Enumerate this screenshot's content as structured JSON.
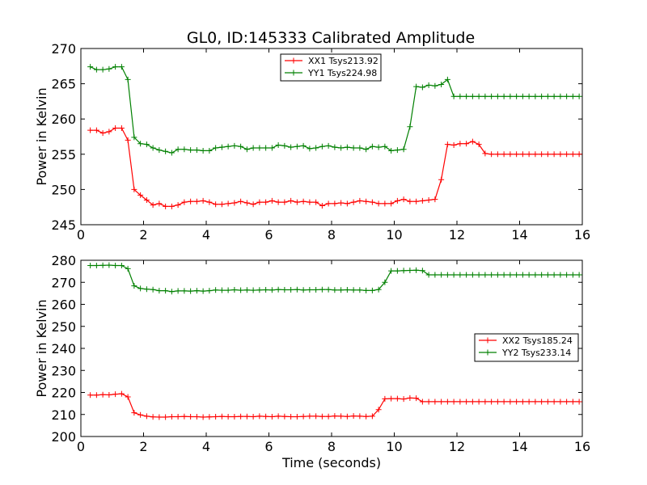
{
  "chart_data": [
    {
      "type": "line",
      "title": "GL0, ID:145333 Calibrated Amplitude",
      "xlabel": "",
      "ylabel": "Power in Kelvin",
      "xlim": [
        0,
        16
      ],
      "ylim": [
        245,
        270
      ],
      "x_ticks": [
        "0",
        "2",
        "4",
        "6",
        "8",
        "10",
        "12",
        "14",
        "16"
      ],
      "y_ticks": [
        "245",
        "250",
        "255",
        "260",
        "265",
        "270"
      ],
      "legend_position": "top-center",
      "x": [
        0.3,
        0.5,
        0.7,
        0.9,
        1.1,
        1.3,
        1.5,
        1.7,
        1.9,
        2.1,
        2.3,
        2.5,
        2.7,
        2.9,
        3.1,
        3.3,
        3.5,
        3.7,
        3.9,
        4.1,
        4.3,
        4.5,
        4.7,
        4.9,
        5.1,
        5.3,
        5.5,
        5.7,
        5.9,
        6.1,
        6.3,
        6.5,
        6.7,
        6.9,
        7.1,
        7.3,
        7.5,
        7.7,
        7.9,
        8.1,
        8.3,
        8.5,
        8.7,
        8.9,
        9.1,
        9.3,
        9.5,
        9.7,
        9.9,
        10.1,
        10.3,
        10.5,
        10.7,
        10.9,
        11.1,
        11.3,
        11.5,
        11.7,
        11.9,
        12.1,
        12.3,
        12.5,
        12.7,
        12.9,
        13.1,
        13.3,
        13.5,
        13.7,
        13.9,
        14.1,
        14.3,
        14.5,
        14.7,
        14.9,
        15.1,
        15.3,
        15.5,
        15.7,
        15.9
      ],
      "series": [
        {
          "name": "XX1 Tsys213.92",
          "color": "#ff0000",
          "values": [
            258.4,
            258.4,
            258.0,
            258.2,
            258.7,
            258.7,
            257.0,
            250.0,
            249.2,
            248.5,
            247.8,
            248.0,
            247.6,
            247.6,
            247.8,
            248.2,
            248.3,
            248.3,
            248.4,
            248.2,
            247.9,
            247.9,
            248.0,
            248.1,
            248.3,
            248.1,
            247.9,
            248.2,
            248.2,
            248.4,
            248.2,
            248.2,
            248.4,
            248.2,
            248.3,
            248.2,
            248.2,
            247.7,
            248.0,
            248.0,
            248.1,
            248.0,
            248.2,
            248.4,
            248.3,
            248.2,
            248.0,
            248.0,
            248.0,
            248.4,
            248.6,
            248.3,
            248.3,
            248.4,
            248.5,
            248.6,
            251.4,
            256.4,
            256.3,
            256.5,
            256.5,
            256.8,
            256.4,
            255.1,
            255.0,
            255.0,
            255.0,
            255.0,
            255.0,
            255.0,
            255.0,
            255.0,
            255.0,
            255.0,
            255.0,
            255.0,
            255.0,
            255.0,
            255.0
          ]
        },
        {
          "name": "YY1 Tsys224.98",
          "color": "#008000",
          "values": [
            267.4,
            267.0,
            267.0,
            267.1,
            267.4,
            267.4,
            265.6,
            257.4,
            256.5,
            256.4,
            255.9,
            255.6,
            255.4,
            255.2,
            255.7,
            255.7,
            255.6,
            255.6,
            255.5,
            255.5,
            255.9,
            256.0,
            256.1,
            256.2,
            256.1,
            255.7,
            255.9,
            255.9,
            255.9,
            255.9,
            256.3,
            256.2,
            256.0,
            256.1,
            256.2,
            255.8,
            255.9,
            256.1,
            256.2,
            256.0,
            255.9,
            256.0,
            255.9,
            255.9,
            255.7,
            256.1,
            256.0,
            256.1,
            255.5,
            255.6,
            255.7,
            258.9,
            264.6,
            264.5,
            264.8,
            264.7,
            264.9,
            265.6,
            263.2,
            263.2,
            263.2,
            263.2,
            263.2,
            263.2,
            263.2,
            263.2,
            263.2,
            263.2,
            263.2,
            263.2,
            263.2,
            263.2,
            263.2,
            263.2,
            263.2,
            263.2,
            263.2,
            263.2,
            263.2
          ]
        }
      ]
    },
    {
      "type": "line",
      "title": "",
      "xlabel": "Time (seconds)",
      "ylabel": "Power in Kelvin",
      "xlim": [
        0,
        16
      ],
      "ylim": [
        200,
        280
      ],
      "x_ticks": [
        "0",
        "2",
        "4",
        "6",
        "8",
        "10",
        "12",
        "14",
        "16"
      ],
      "y_ticks": [
        "200",
        "210",
        "220",
        "230",
        "240",
        "250",
        "260",
        "270",
        "280"
      ],
      "legend_position": "center-right",
      "x": [
        0.3,
        0.5,
        0.7,
        0.9,
        1.1,
        1.3,
        1.5,
        1.7,
        1.9,
        2.1,
        2.3,
        2.5,
        2.7,
        2.9,
        3.1,
        3.3,
        3.5,
        3.7,
        3.9,
        4.1,
        4.3,
        4.5,
        4.7,
        4.9,
        5.1,
        5.3,
        5.5,
        5.7,
        5.9,
        6.1,
        6.3,
        6.5,
        6.7,
        6.9,
        7.1,
        7.3,
        7.5,
        7.7,
        7.9,
        8.1,
        8.3,
        8.5,
        8.7,
        8.9,
        9.1,
        9.3,
        9.5,
        9.7,
        9.9,
        10.1,
        10.3,
        10.5,
        10.7,
        10.9,
        11.1,
        11.3,
        11.5,
        11.7,
        11.9,
        12.1,
        12.3,
        12.5,
        12.7,
        12.9,
        13.1,
        13.3,
        13.5,
        13.7,
        13.9,
        14.1,
        14.3,
        14.5,
        14.7,
        14.9,
        15.1,
        15.3,
        15.5,
        15.7,
        15.9
      ],
      "series": [
        {
          "name": "XX2 Tsys185.24",
          "color": "#ff0000",
          "values": [
            218.8,
            218.8,
            219.0,
            218.9,
            219.2,
            219.4,
            218.0,
            210.8,
            209.8,
            209.2,
            208.9,
            208.8,
            208.8,
            209.0,
            209.0,
            209.1,
            209.0,
            209.0,
            208.8,
            208.9,
            209.0,
            209.1,
            209.0,
            209.0,
            209.1,
            209.1,
            209.0,
            209.2,
            209.1,
            209.0,
            209.2,
            209.1,
            209.0,
            209.0,
            209.1,
            209.2,
            209.2,
            209.1,
            209.1,
            209.3,
            209.2,
            209.1,
            209.3,
            209.2,
            209.1,
            209.2,
            212.2,
            217.1,
            217.2,
            217.2,
            217.0,
            217.5,
            217.4,
            215.8,
            215.8,
            215.8,
            215.8,
            215.8,
            215.8,
            215.8,
            215.8,
            215.8,
            215.8,
            215.8,
            215.8,
            215.8,
            215.8,
            215.8,
            215.8,
            215.8,
            215.8,
            215.8,
            215.8,
            215.8,
            215.8,
            215.8,
            215.8,
            215.8,
            215.8
          ]
        },
        {
          "name": "YY2 Tsys233.14",
          "color": "#008000",
          "values": [
            277.6,
            277.6,
            277.7,
            277.8,
            277.6,
            277.6,
            276.2,
            268.4,
            267.2,
            266.9,
            266.7,
            266.2,
            266.2,
            265.8,
            266.1,
            266.1,
            266.0,
            266.2,
            266.0,
            266.2,
            266.5,
            266.4,
            266.4,
            266.6,
            266.4,
            266.5,
            266.4,
            266.5,
            266.6,
            266.5,
            266.7,
            266.6,
            266.6,
            266.7,
            266.5,
            266.6,
            266.6,
            266.7,
            266.7,
            266.5,
            266.5,
            266.6,
            266.5,
            266.5,
            266.3,
            266.3,
            266.7,
            270.0,
            275.2,
            275.2,
            275.3,
            275.4,
            275.5,
            275.3,
            273.4,
            273.4,
            273.4,
            273.4,
            273.4,
            273.4,
            273.4,
            273.4,
            273.4,
            273.4,
            273.4,
            273.4,
            273.4,
            273.4,
            273.4,
            273.4,
            273.4,
            273.4,
            273.4,
            273.4,
            273.4,
            273.4,
            273.4,
            273.4,
            273.4
          ]
        }
      ]
    }
  ]
}
